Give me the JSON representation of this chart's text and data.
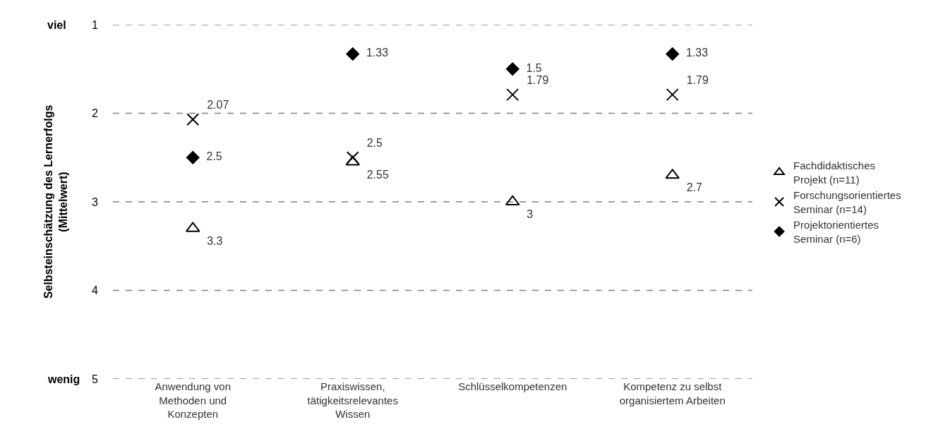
{
  "chart_data": {
    "type": "scatter",
    "ylabel": "Selbsteinschätzung des Lernerfolgs\n(Mittelwert)",
    "categories": [
      "Anwendung von\nMethoden und\nKonzepten",
      "Praxiswissen,\ntätigkeitsrelevantes\nWissen",
      "Schlüsselkompetenzen",
      "Kompetenz zu selbst\norganisiertem Arbeiten"
    ],
    "series": [
      {
        "name": "Fachdidaktisches\nProjekt (n=11)",
        "color": "#000000",
        "marker": "triangle",
        "values": [
          3.3,
          2.55,
          3,
          2.7
        ]
      },
      {
        "name": "Forschungsorientiertes\nSeminar (n=14)",
        "color": "#000000",
        "marker": "cross",
        "values": [
          2.07,
          2.5,
          1.79,
          1.79
        ]
      },
      {
        "name": "Projektorientiertes\nSeminar (n=6)",
        "color": "#000000",
        "marker": "diamond",
        "values": [
          2.5,
          1.33,
          1.5,
          1.33
        ]
      }
    ],
    "ylim": [
      5,
      1
    ],
    "yticks": [
      1,
      2,
      3,
      4,
      5
    ],
    "grid": "y",
    "legend": "right",
    "data_labels": true,
    "annotations": [
      "viel",
      "wenig"
    ]
  }
}
